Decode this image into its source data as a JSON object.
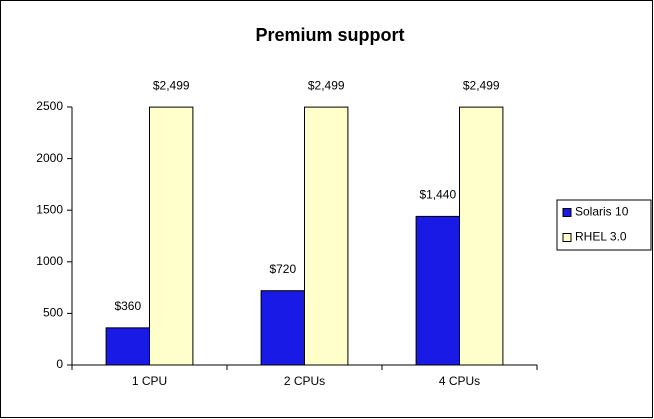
{
  "chart_data": {
    "type": "bar",
    "title": "Premium support",
    "categories": [
      "1 CPU",
      "2 CPUs",
      "4 CPUs"
    ],
    "series": [
      {
        "name": "Solaris 10",
        "color": "#1a1ae6",
        "values": [
          360,
          720,
          1440
        ],
        "value_labels": [
          "$360",
          "$720",
          "$1,440"
        ]
      },
      {
        "name": "RHEL 3.0",
        "color": "#ffffcc",
        "values": [
          2499,
          2499,
          2499
        ],
        "value_labels": [
          "$2,499",
          "$2,499",
          "$2,499"
        ]
      }
    ],
    "ylim": [
      0,
      2500
    ],
    "yticks": [
      0,
      500,
      1000,
      1500,
      2000,
      2500
    ],
    "grid": false,
    "legend": "right"
  }
}
